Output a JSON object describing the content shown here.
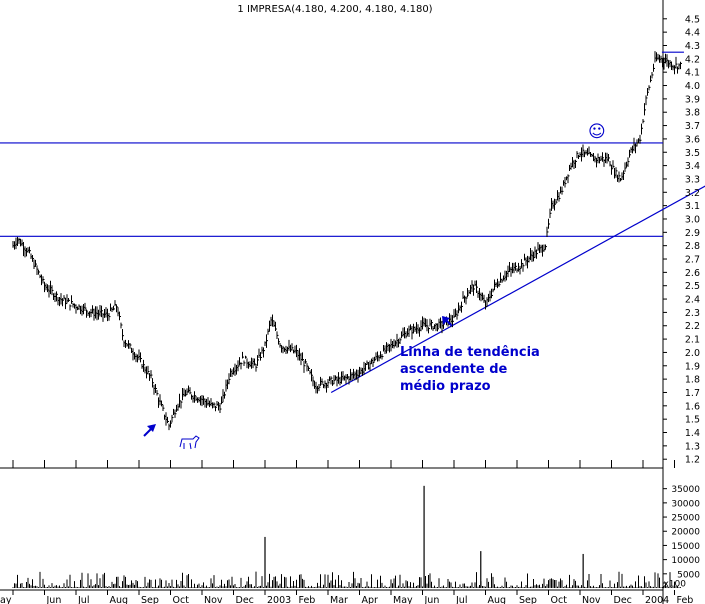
{
  "chart_data": {
    "type": "bar",
    "title": "1 IMPRESA(4.180, 4.200, 4.180, 4.180)",
    "price_axis": {
      "ylim": [
        1.2,
        4.5
      ],
      "ticks": [
        "1.2",
        "1.3",
        "1.4",
        "1.5",
        "1.6",
        "1.7",
        "1.8",
        "1.9",
        "2.0",
        "2.1",
        "2.2",
        "2.3",
        "2.4",
        "2.5",
        "2.6",
        "2.7",
        "2.8",
        "2.9",
        "3.0",
        "3.1",
        "3.2",
        "3.3",
        "3.4",
        "3.5",
        "3.6",
        "3.7",
        "3.8",
        "3.9",
        "4.0",
        "4.1",
        "4.2",
        "4.3",
        "4.4",
        "4.5"
      ]
    },
    "volume_axis": {
      "ylim": [
        0,
        37000
      ],
      "ticks": [
        "x100",
        "5000",
        "10000",
        "15000",
        "20000",
        "25000",
        "30000",
        "35000"
      ]
    },
    "x_axis": {
      "months": [
        {
          "label": "ay",
          "m": 0
        },
        {
          "label": "Jun",
          "m": 1
        },
        {
          "label": "Jul",
          "m": 2
        },
        {
          "label": "Aug",
          "m": 3
        },
        {
          "label": "Sep",
          "m": 4
        },
        {
          "label": "Oct",
          "m": 5
        },
        {
          "label": "Nov",
          "m": 6
        },
        {
          "label": "Dec",
          "m": 7
        },
        {
          "label": "2003",
          "m": 8
        },
        {
          "label": "Feb",
          "m": 9
        },
        {
          "label": "Mar",
          "m": 10
        },
        {
          "label": "Apr",
          "m": 11
        },
        {
          "label": "May",
          "m": 12
        },
        {
          "label": "Jun",
          "m": 13
        },
        {
          "label": "Jul",
          "m": 14
        },
        {
          "label": "Aug",
          "m": 15
        },
        {
          "label": "Sep",
          "m": 16
        },
        {
          "label": "Oct",
          "m": 17
        },
        {
          "label": "Nov",
          "m": 18
        },
        {
          "label": "Dec",
          "m": 19
        },
        {
          "label": "2004",
          "m": 20
        },
        {
          "label": "Feb",
          "m": 21
        }
      ]
    },
    "price_anchors": [
      [
        0.0,
        2.8
      ],
      [
        0.15,
        2.85
      ],
      [
        0.5,
        2.75
      ],
      [
        1.0,
        2.5
      ],
      [
        1.5,
        2.4
      ],
      [
        2.0,
        2.35
      ],
      [
        2.5,
        2.3
      ],
      [
        3.0,
        2.28
      ],
      [
        3.3,
        2.35
      ],
      [
        3.5,
        2.1
      ],
      [
        4.0,
        1.95
      ],
      [
        4.4,
        1.8
      ],
      [
        4.7,
        1.6
      ],
      [
        4.95,
        1.45
      ],
      [
        5.2,
        1.6
      ],
      [
        5.5,
        1.7
      ],
      [
        6.0,
        1.65
      ],
      [
        6.3,
        1.6
      ],
      [
        6.6,
        1.6
      ],
      [
        6.9,
        1.85
      ],
      [
        7.3,
        1.95
      ],
      [
        7.7,
        1.9
      ],
      [
        8.0,
        2.05
      ],
      [
        8.2,
        2.25
      ],
      [
        8.5,
        2.05
      ],
      [
        9.0,
        2.0
      ],
      [
        9.3,
        1.9
      ],
      [
        9.6,
        1.75
      ],
      [
        10.0,
        1.78
      ],
      [
        10.5,
        1.8
      ],
      [
        11.0,
        1.85
      ],
      [
        11.5,
        1.95
      ],
      [
        12.0,
        2.05
      ],
      [
        12.5,
        2.15
      ],
      [
        13.0,
        2.2
      ],
      [
        13.5,
        2.2
      ],
      [
        14.0,
        2.25
      ],
      [
        14.3,
        2.4
      ],
      [
        14.6,
        2.5
      ],
      [
        14.8,
        2.45
      ],
      [
        15.0,
        2.35
      ],
      [
        15.3,
        2.5
      ],
      [
        15.7,
        2.6
      ],
      [
        16.1,
        2.65
      ],
      [
        16.6,
        2.75
      ],
      [
        16.9,
        2.8
      ],
      [
        17.1,
        3.1
      ],
      [
        17.4,
        3.2
      ],
      [
        17.7,
        3.4
      ],
      [
        18.0,
        3.5
      ],
      [
        18.5,
        3.45
      ],
      [
        18.9,
        3.45
      ],
      [
        19.1,
        3.35
      ],
      [
        19.3,
        3.3
      ],
      [
        19.6,
        3.5
      ],
      [
        19.9,
        3.6
      ],
      [
        20.1,
        3.9
      ],
      [
        20.4,
        4.2
      ],
      [
        20.6,
        4.2
      ],
      [
        21.0,
        4.15
      ],
      [
        21.2,
        4.15
      ]
    ],
    "horizontal_lines": [
      {
        "price": 3.57
      },
      {
        "price": 2.87
      }
    ],
    "trend_line": {
      "from": [
        10.1,
        1.7
      ],
      "to": [
        22.0,
        3.25
      ]
    },
    "resistance_segment": {
      "from": [
        20.6,
        4.25
      ],
      "to": [
        21.3,
        4.25
      ]
    },
    "volume_spikes": [
      {
        "m": 8.0,
        "value": 18000
      },
      {
        "m": 13.05,
        "value": 36000
      },
      {
        "m": 14.85,
        "value": 13000
      },
      {
        "m": 18.1,
        "value": 12000
      }
    ],
    "annotations": {
      "trend_label": [
        "Linha de tendência",
        "ascendente de",
        "médio prazo"
      ],
      "smiley": "☺"
    },
    "colors": {
      "price": "#000000",
      "lines": "#0000cc",
      "annotation": "#0000cc",
      "grid_tick": "#000000"
    }
  }
}
